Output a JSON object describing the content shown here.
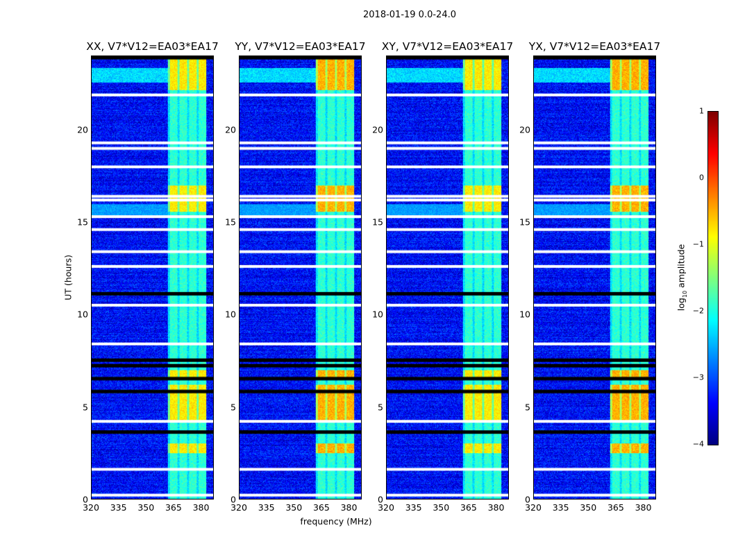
{
  "chart_data": {
    "type": "heatmap",
    "title": "2018-01-19 0.0-24.0",
    "xlabel": "frequency (MHz)",
    "ylabel": "UT (hours)",
    "xlim": [
      320,
      387
    ],
    "ylim": [
      0,
      24
    ],
    "xticks": [
      "320",
      "335",
      "350",
      "365",
      "380"
    ],
    "xtick_values": [
      320,
      335,
      350,
      365,
      380
    ],
    "yticks": [
      "0",
      "5",
      "10",
      "15",
      "20"
    ],
    "ytick_values": [
      0,
      5,
      10,
      15,
      20
    ],
    "panels": [
      {
        "title": "XX, V7*V12=EA03*EA17"
      },
      {
        "title": "YY, V7*V12=EA03*EA17"
      },
      {
        "title": "XY, V7*V12=EA03*EA17"
      },
      {
        "title": "YX, V7*V12=EA03*EA17"
      }
    ],
    "bright_band_mhz": [
      362,
      383
    ],
    "strong_rfi_hours": [
      [
        22.2,
        24
      ],
      [
        15.6,
        17.0
      ],
      [
        4.3,
        6.2
      ],
      [
        6.5,
        7.0
      ],
      [
        2.5,
        3.0
      ]
    ],
    "flagged_white_hours": [
      0.2,
      1.6,
      4.2,
      15.3,
      16.2,
      16.4,
      18.0,
      19.0,
      19.3,
      21.9,
      14.6,
      13.4,
      12.6,
      10.5,
      8.4
    ],
    "flagged_black_hours": [
      3.6,
      5.8,
      6.5,
      7.5,
      7.2,
      11.1,
      23.9
    ],
    "colorbar": {
      "label": "log10 amplitude",
      "label_main": "log",
      "label_sub": "10",
      "label_rest": " amplitude",
      "range": [
        -4,
        1
      ],
      "ticks": [
        "1",
        "0",
        "−1",
        "−2",
        "−3",
        "−4"
      ],
      "tick_values": [
        1,
        0,
        -1,
        -2,
        -3,
        -4
      ],
      "colormap": "jet"
    }
  }
}
